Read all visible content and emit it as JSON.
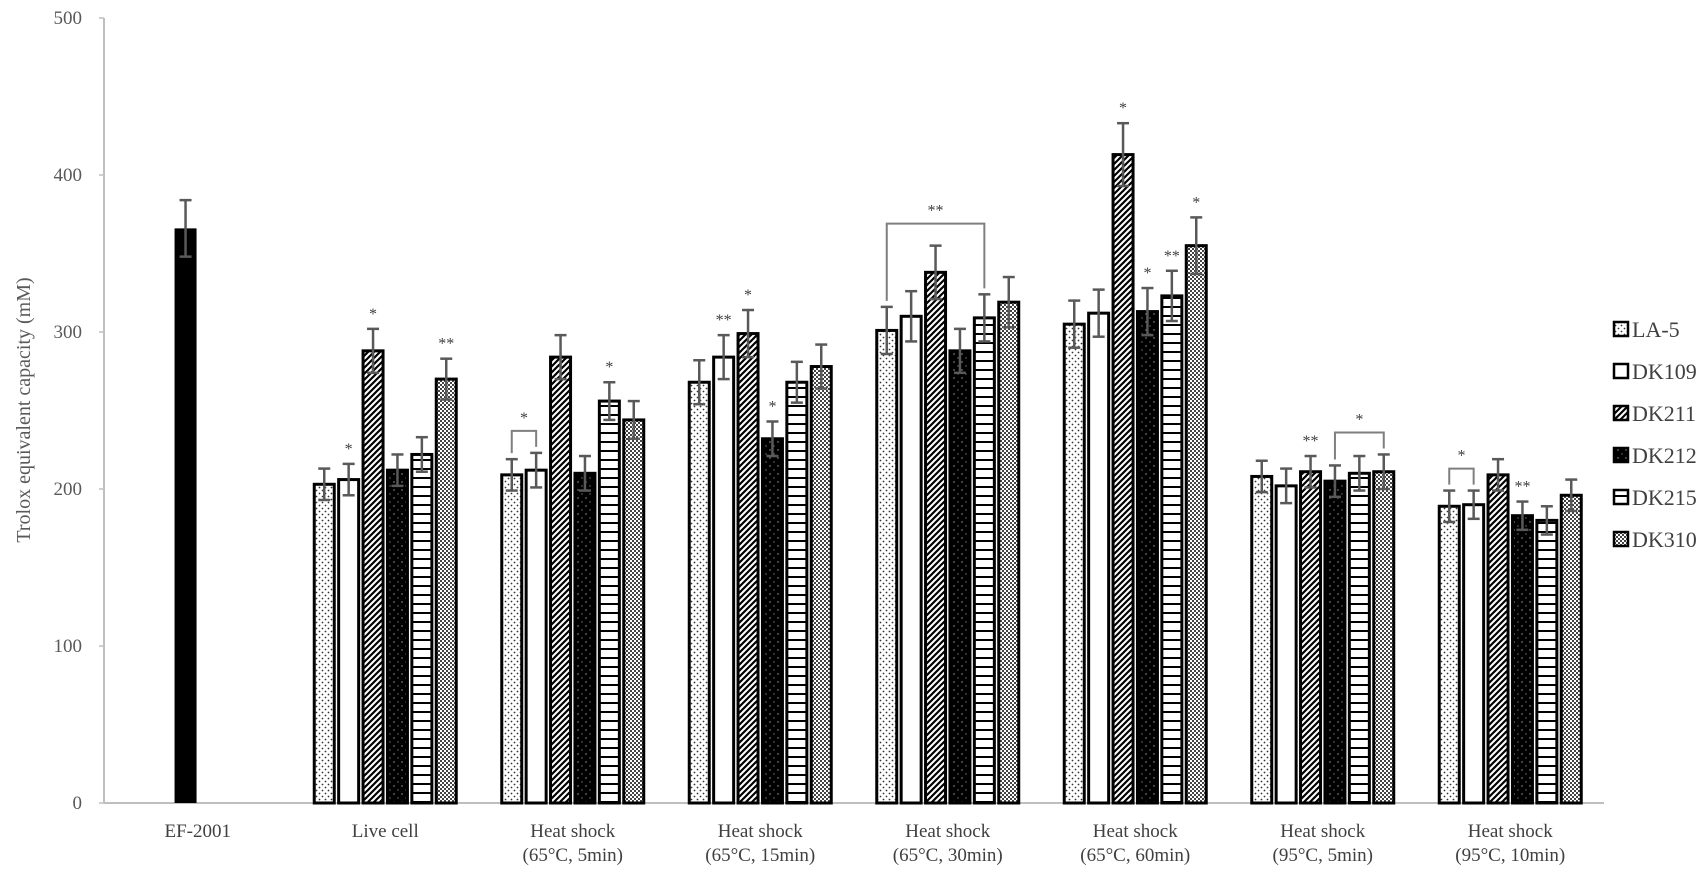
{
  "chart_data": {
    "type": "bar",
    "title": "",
    "xlabel": "",
    "ylabel": "Trolox equivalent capacity (mM)",
    "ylim": [
      0,
      500
    ],
    "yticks": [
      "0",
      "100",
      "200",
      "300",
      "400",
      "500"
    ],
    "legend_position": "right",
    "categories": [
      [
        "EF-2001",
        ""
      ],
      [
        "Live cell",
        ""
      ],
      [
        "Heat shock",
        "(65°C, 5min)"
      ],
      [
        "Heat shock",
        "(65°C, 15min)"
      ],
      [
        "Heat shock",
        "(65°C, 30min)"
      ],
      [
        "Heat shock",
        "(65°C, 60min)"
      ],
      [
        "Heat shock",
        "(95°C, 5min)"
      ],
      [
        "Heat shock",
        "(95°C, 10min)"
      ]
    ],
    "reference": {
      "category": 0,
      "value": 366,
      "error": 18
    },
    "series": [
      {
        "name": "LA-5",
        "pattern": "dots-light",
        "values": [
          null,
          203,
          209,
          268,
          301,
          305,
          208,
          189
        ],
        "errors": [
          null,
          10,
          10,
          14,
          15,
          15,
          10,
          10
        ]
      },
      {
        "name": "DK109",
        "pattern": "white",
        "values": [
          null,
          206,
          212,
          284,
          310,
          312,
          202,
          190
        ],
        "errors": [
          null,
          10,
          11,
          14,
          16,
          15,
          11,
          9
        ]
      },
      {
        "name": "DK211",
        "pattern": "diagonal",
        "values": [
          null,
          288,
          284,
          299,
          338,
          413,
          211,
          209
        ],
        "errors": [
          null,
          14,
          14,
          15,
          17,
          20,
          10,
          10
        ]
      },
      {
        "name": "DK212",
        "pattern": "dark-dots",
        "values": [
          null,
          212,
          210,
          232,
          288,
          313,
          205,
          183
        ],
        "errors": [
          null,
          10,
          11,
          11,
          14,
          15,
          10,
          9
        ]
      },
      {
        "name": "DK215",
        "pattern": "horizontal",
        "values": [
          null,
          222,
          256,
          268,
          309,
          323,
          210,
          180
        ],
        "errors": [
          null,
          11,
          12,
          13,
          15,
          16,
          11,
          9
        ]
      },
      {
        "name": "DK310",
        "pattern": "checker",
        "values": [
          null,
          270,
          244,
          278,
          319,
          355,
          211,
          196
        ],
        "errors": [
          null,
          13,
          12,
          14,
          16,
          18,
          11,
          10
        ]
      }
    ],
    "annotations": [
      {
        "category": 1,
        "series": [
          1
        ],
        "text": "*"
      },
      {
        "category": 1,
        "series": [
          2
        ],
        "text": "*"
      },
      {
        "category": 1,
        "series": [
          5
        ],
        "text": "**"
      },
      {
        "category": 2,
        "series": [
          0,
          1
        ],
        "text": "*"
      },
      {
        "category": 2,
        "series": [
          4
        ],
        "text": "*"
      },
      {
        "category": 3,
        "series": [
          1
        ],
        "text": "**"
      },
      {
        "category": 3,
        "series": [
          2
        ],
        "text": "*"
      },
      {
        "category": 3,
        "series": [
          3
        ],
        "text": "*"
      },
      {
        "category": 4,
        "series": [
          0,
          4
        ],
        "text": "**"
      },
      {
        "category": 5,
        "series": [
          2
        ],
        "text": "*"
      },
      {
        "category": 5,
        "series": [
          3
        ],
        "text": "*"
      },
      {
        "category": 5,
        "series": [
          4
        ],
        "text": "**"
      },
      {
        "category": 5,
        "series": [
          5
        ],
        "text": "*"
      },
      {
        "category": 6,
        "series": [
          2
        ],
        "text": "**"
      },
      {
        "category": 6,
        "series": [
          3,
          5
        ],
        "text": "*"
      },
      {
        "category": 7,
        "series": [
          0,
          1
        ],
        "text": "*"
      },
      {
        "category": 7,
        "series": [
          3
        ],
        "text": "**"
      }
    ],
    "colors": {
      "bar_outline": "#000000",
      "error_bar": "#595959",
      "axis": "#bfbfbf",
      "bracket": "#7f7f7f"
    }
  }
}
